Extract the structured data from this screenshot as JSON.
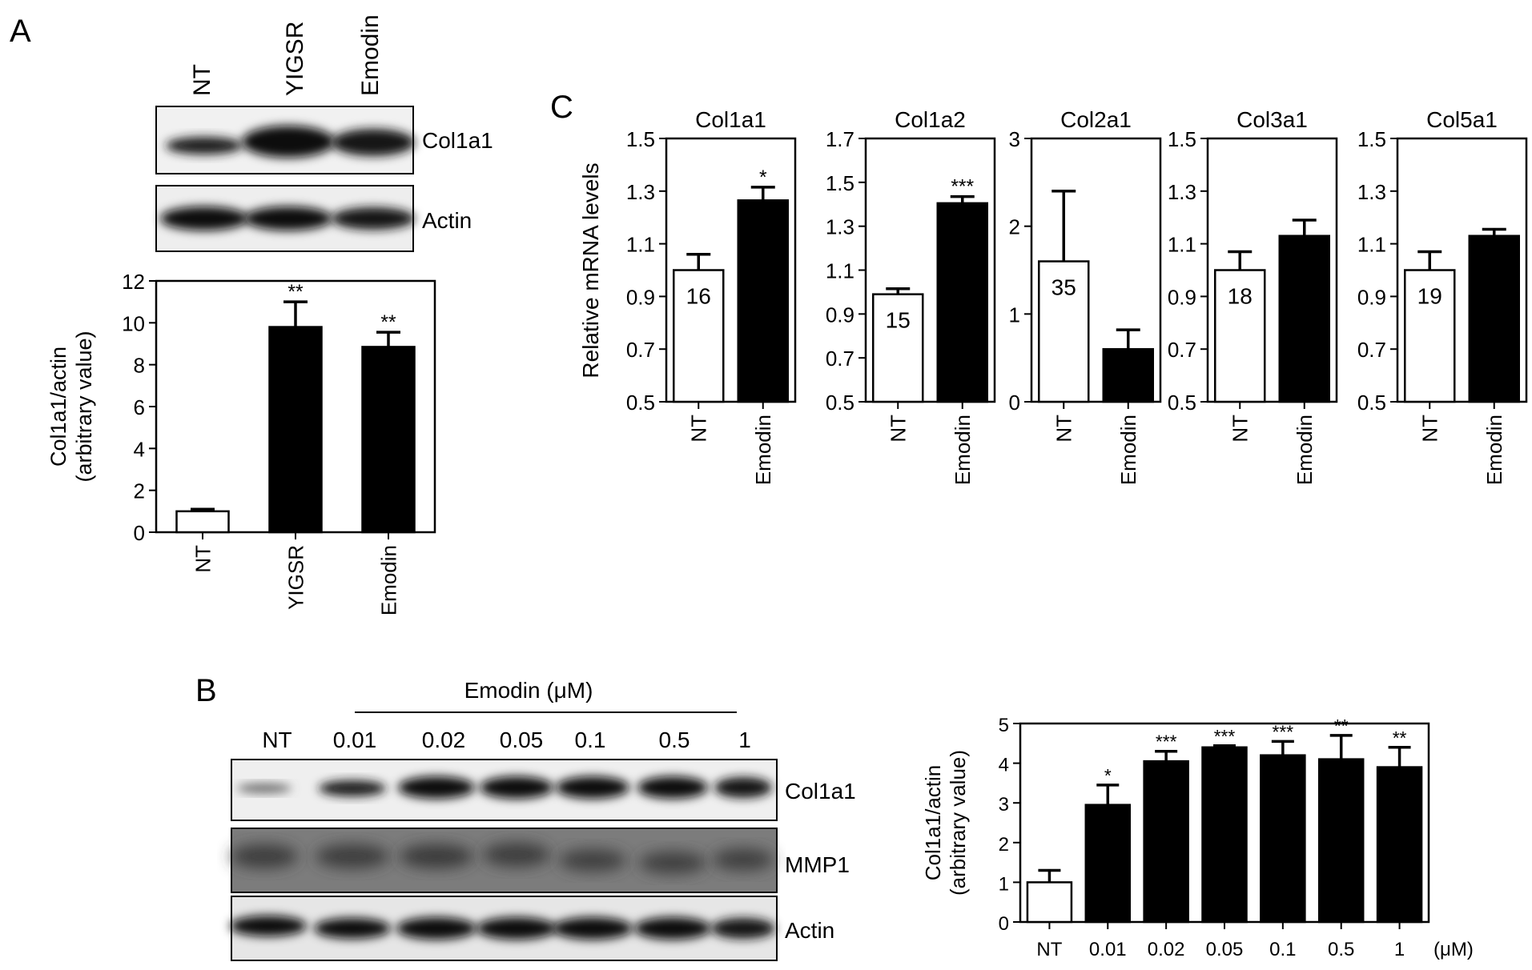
{
  "panels": {
    "A": {
      "letter": "A",
      "blot_lanes": [
        "NT",
        "YIGSR",
        "Emodin"
      ],
      "blot_rows": [
        "Col1a1",
        "Actin"
      ],
      "chart": {
        "type": "bar",
        "categories": [
          "NT",
          "YIGSR",
          "Emodin"
        ],
        "values": [
          1.0,
          9.8,
          8.85
        ],
        "errors": [
          0.1,
          1.2,
          0.7
        ],
        "fills": [
          "white",
          "black",
          "black"
        ],
        "annotations": [
          "",
          "**",
          "**"
        ],
        "ylim": [
          0,
          12
        ],
        "yticks": [
          0,
          2,
          4,
          6,
          8,
          10,
          12
        ],
        "ylabel_lines": [
          "Col1a1/actin",
          "(arbitrary value)"
        ]
      }
    },
    "B": {
      "letter": "B",
      "treatment_label": "Emodin (μM)",
      "blot_lanes": [
        "NT",
        "0.01",
        "0.02",
        "0.05",
        "0.1",
        "0.5",
        "1"
      ],
      "blot_rows": [
        "Col1a1",
        "MMP1",
        "Actin"
      ],
      "chart": {
        "type": "bar",
        "categories": [
          "NT",
          "0.01",
          "0.02",
          "0.05",
          "0.1",
          "0.5",
          "1"
        ],
        "values": [
          1.0,
          2.95,
          4.05,
          4.4,
          4.2,
          4.1,
          3.9
        ],
        "errors": [
          0.3,
          0.5,
          0.25,
          0.04,
          0.35,
          0.6,
          0.5
        ],
        "fills": [
          "white",
          "black",
          "black",
          "black",
          "black",
          "black",
          "black"
        ],
        "annotations": [
          "",
          "*",
          "***",
          "***",
          "***",
          "**",
          "**"
        ],
        "ylim": [
          0,
          5
        ],
        "yticks": [
          0,
          1,
          2,
          3,
          4,
          5
        ],
        "ylabel_lines": [
          "Col1a1/actin",
          "(arbitrary value)"
        ],
        "unit_label": "(μM)"
      }
    },
    "C": {
      "letter": "C",
      "ylabel": "Relative mRNA levels",
      "subplots": [
        {
          "title": "Col1a1",
          "categories": [
            "NT",
            "Emodin"
          ],
          "values": [
            1.0,
            1.265
          ],
          "errors": [
            0.06,
            0.05
          ],
          "ylim": [
            0.5,
            1.5
          ],
          "yticks": [
            "0.5",
            "0.7",
            "0.9",
            "1.1",
            "1.3",
            "1.5"
          ],
          "n_label": "16",
          "annotations": [
            "",
            "*"
          ]
        },
        {
          "title": "Col1a2",
          "categories": [
            "NT",
            "Emodin"
          ],
          "values": [
            0.99,
            1.405
          ],
          "errors": [
            0.025,
            0.03
          ],
          "ylim": [
            0.5,
            1.7
          ],
          "yticks": [
            "0.5",
            "0.7",
            "0.9",
            "1.1",
            "1.3",
            "1.5",
            "1.7"
          ],
          "n_label": "15",
          "annotations": [
            "",
            "***"
          ]
        },
        {
          "title": "Col2a1",
          "categories": [
            "NT",
            "Emodin"
          ],
          "values": [
            1.6,
            0.6
          ],
          "errors": [
            0.8,
            0.22
          ],
          "ylim": [
            0,
            3
          ],
          "yticks": [
            "0",
            "1",
            "2",
            "3"
          ],
          "n_label": "35",
          "annotations": [
            "",
            ""
          ]
        },
        {
          "title": "Col3a1",
          "categories": [
            "NT",
            "Emodin"
          ],
          "values": [
            1.0,
            1.13
          ],
          "errors": [
            0.07,
            0.06
          ],
          "ylim": [
            0.5,
            1.5
          ],
          "yticks": [
            "0.5",
            "0.7",
            "0.9",
            "1.1",
            "1.3",
            "1.5"
          ],
          "n_label": "18",
          "annotations": [
            "",
            ""
          ]
        },
        {
          "title": "Col5a1",
          "categories": [
            "NT",
            "Emodin"
          ],
          "values": [
            1.0,
            1.13
          ],
          "errors": [
            0.07,
            0.025
          ],
          "ylim": [
            0.5,
            1.5
          ],
          "yticks": [
            "0.5",
            "0.7",
            "0.9",
            "1.1",
            "1.3",
            "1.5"
          ],
          "n_label": "19",
          "annotations": [
            "",
            ""
          ]
        }
      ]
    }
  }
}
